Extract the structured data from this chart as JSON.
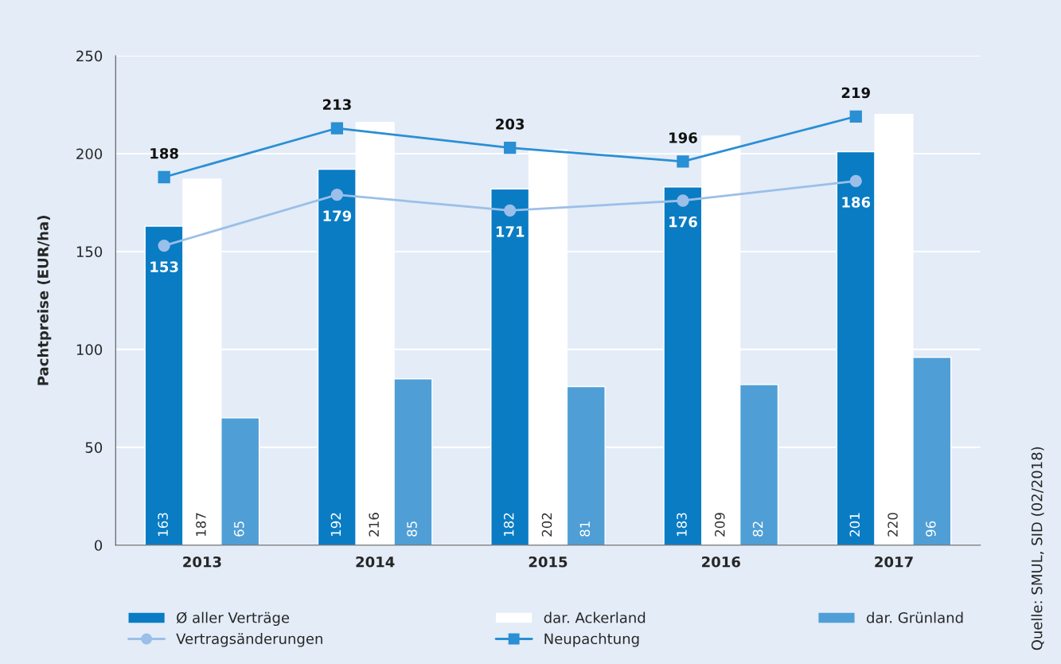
{
  "chart_data": {
    "type": "bar",
    "ylabel": "Pachtpreise (EUR/ha)",
    "categories": [
      "2013",
      "2014",
      "2015",
      "2016",
      "2017"
    ],
    "series": [
      {
        "name": "Ø aller Verträge",
        "color": "#0a7cc4",
        "values": [
          163,
          192,
          182,
          183,
          201
        ]
      },
      {
        "name": "dar. Ackerland",
        "color": "#ffffff",
        "values": [
          187,
          216,
          202,
          209,
          220
        ]
      },
      {
        "name": "dar. Grünland",
        "color": "#4f9fd6",
        "values": [
          65,
          85,
          81,
          82,
          96
        ]
      },
      {
        "name": "Vertragsänderungen",
        "type": "line",
        "color": "#9bbfe8",
        "marker": "circle",
        "values": [
          153,
          179,
          171,
          176,
          186
        ]
      },
      {
        "name": "Neupachtung",
        "type": "line",
        "color": "#2a8fd4",
        "marker": "square",
        "values": [
          188,
          213,
          203,
          196,
          219
        ]
      }
    ],
    "ylim": [
      0,
      250
    ],
    "yticks": [
      0,
      50,
      100,
      150,
      200,
      250
    ],
    "grid": "y",
    "legend": "bottom",
    "data_labels": true,
    "annotations": [
      "Quelle: SMUL, SID (02/2018)"
    ]
  }
}
